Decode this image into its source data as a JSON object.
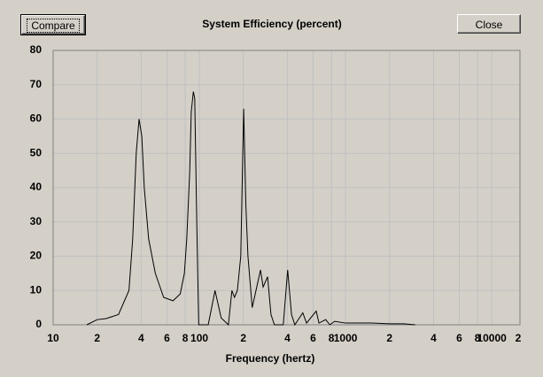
{
  "buttons": {
    "compare": "Compare",
    "close": "Close"
  },
  "chart_data": {
    "type": "line",
    "title": "System Efficiency (percent)",
    "x_label": "Frequency (hertz)",
    "xscale": "log",
    "grid": true,
    "xlim": [
      10,
      15600
    ],
    "ylim": [
      0,
      80
    ],
    "xticks": [
      10,
      {
        "value": 20,
        "label": "2"
      },
      {
        "value": 40,
        "label": "4"
      },
      {
        "value": 60,
        "label": "6"
      },
      {
        "value": 80,
        "label": "8"
      },
      100,
      {
        "value": 200,
        "label": "2"
      },
      {
        "value": 400,
        "label": "4"
      },
      {
        "value": 600,
        "label": "6"
      },
      {
        "value": 800,
        "label": "8"
      },
      1000,
      {
        "value": 2000,
        "label": "2"
      },
      {
        "value": 4000,
        "label": "4"
      },
      {
        "value": 6000,
        "label": "6"
      },
      {
        "value": 8000,
        "label": "8"
      },
      10000,
      {
        "value": 20000,
        "label": "2"
      }
    ],
    "yticks": [
      0,
      10,
      20,
      30,
      40,
      50,
      60,
      70,
      80
    ],
    "x": [
      17,
      20,
      23,
      28,
      33,
      35,
      37,
      38.7,
      40.4,
      42,
      45,
      50,
      57,
      66,
      74,
      79,
      82,
      86,
      88,
      91,
      93,
      96,
      99,
      115,
      128,
      141,
      158,
      167,
      174,
      182,
      192,
      201,
      208,
      215,
      230,
      262,
      273,
      293,
      309,
      326,
      375,
      402,
      427,
      450,
      510,
      541,
      630,
      658,
      732,
      780,
      843,
      1000,
      1500,
      2000,
      2500,
      3000
    ],
    "series": [
      {
        "color": "#000000",
        "values": [
          0,
          1.5,
          1.8,
          3,
          10,
          25,
          50,
          60,
          55,
          40,
          25,
          15,
          8,
          7,
          9,
          15,
          25,
          45,
          62,
          68,
          66,
          30,
          0,
          0,
          10,
          2,
          0,
          10,
          8,
          10,
          20,
          63,
          35,
          20,
          5,
          16,
          11,
          14,
          3,
          0,
          0,
          16,
          3,
          0,
          3.5,
          0.5,
          4,
          0.5,
          1.5,
          0,
          1,
          0.5,
          0.5,
          0.3,
          0.3,
          0
        ]
      }
    ]
  }
}
